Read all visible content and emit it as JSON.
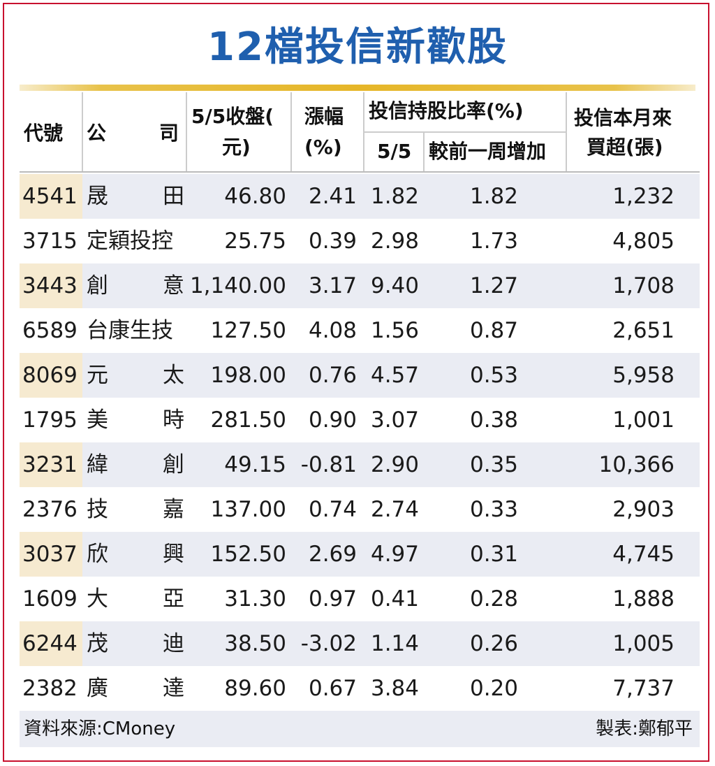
{
  "title": "12檔投信新歡股",
  "headers": {
    "code": "代號",
    "company_a": "公",
    "company_b": "司",
    "close_line1": "5/5收盤(",
    "close_line2": "元)",
    "change_line1": "漲幅",
    "change_line2": "(%)",
    "ratio_group": "投信持股比率(%)",
    "ratio_date": "5/5",
    "ratio_inc": "較前一周增加",
    "buy_line1": "投信本月來",
    "buy_line2": "買超(張)"
  },
  "rows": [
    {
      "code": "4541",
      "name": [
        "晟",
        "田"
      ],
      "close": "46.80",
      "change": "2.41",
      "ratio": "1.82",
      "increase": "1.82",
      "buy": "1,232"
    },
    {
      "code": "3715",
      "name": [
        "定穎投控"
      ],
      "close": "25.75",
      "change": "0.39",
      "ratio": "2.98",
      "increase": "1.73",
      "buy": "4,805"
    },
    {
      "code": "3443",
      "name": [
        "創",
        "意"
      ],
      "close": "1,140.00",
      "change": "3.17",
      "ratio": "9.40",
      "increase": "1.27",
      "buy": "1,708"
    },
    {
      "code": "6589",
      "name": [
        "台康生技"
      ],
      "close": "127.50",
      "change": "4.08",
      "ratio": "1.56",
      "increase": "0.87",
      "buy": "2,651"
    },
    {
      "code": "8069",
      "name": [
        "元",
        "太"
      ],
      "close": "198.00",
      "change": "0.76",
      "ratio": "4.57",
      "increase": "0.53",
      "buy": "5,958"
    },
    {
      "code": "1795",
      "name": [
        "美",
        "時"
      ],
      "close": "281.50",
      "change": "0.90",
      "ratio": "3.07",
      "increase": "0.38",
      "buy": "1,001"
    },
    {
      "code": "3231",
      "name": [
        "緯",
        "創"
      ],
      "close": "49.15",
      "change": "-0.81",
      "ratio": "2.90",
      "increase": "0.35",
      "buy": "10,366"
    },
    {
      "code": "2376",
      "name": [
        "技",
        "嘉"
      ],
      "close": "137.00",
      "change": "0.74",
      "ratio": "2.74",
      "increase": "0.33",
      "buy": "2,903"
    },
    {
      "code": "3037",
      "name": [
        "欣",
        "興"
      ],
      "close": "152.50",
      "change": "2.69",
      "ratio": "4.97",
      "increase": "0.31",
      "buy": "4,745"
    },
    {
      "code": "1609",
      "name": [
        "大",
        "亞"
      ],
      "close": "31.30",
      "change": "0.97",
      "ratio": "0.41",
      "increase": "0.28",
      "buy": "1,888"
    },
    {
      "code": "6244",
      "name": [
        "茂",
        "迪"
      ],
      "close": "38.50",
      "change": "-3.02",
      "ratio": "1.14",
      "increase": "0.26",
      "buy": "1,005"
    },
    {
      "code": "2382",
      "name": [
        "廣",
        "達"
      ],
      "close": "89.60",
      "change": "0.67",
      "ratio": "3.84",
      "increase": "0.20",
      "buy": "7,737"
    }
  ],
  "footer": {
    "source": "資料來源:CMoney",
    "maker": "製表:鄭郁平"
  },
  "colors": {
    "border": "#c8102e",
    "title": "#1f5fae",
    "gold_rule": "#e6b628",
    "row_shade": "#eaecf3",
    "code_tab": "#f6ead0"
  }
}
